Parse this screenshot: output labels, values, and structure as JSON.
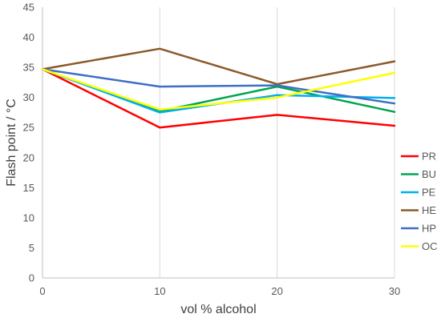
{
  "chart_data": {
    "type": "line",
    "title": "",
    "xlabel": "vol % alcohol",
    "ylabel": "Flash point / °C",
    "x": [
      0,
      10,
      20,
      30
    ],
    "xlim": [
      0,
      30
    ],
    "ylim": [
      0,
      45
    ],
    "xticks": [
      "0",
      "10",
      "20",
      "30"
    ],
    "yticks": [
      "0",
      "5",
      "10",
      "15",
      "20",
      "25",
      "30",
      "35",
      "40",
      "45"
    ],
    "grid": "vertical",
    "legend_position": "right",
    "series": [
      {
        "name": "PR",
        "color": "#ff0000",
        "values": [
          34.7,
          25.0,
          27.1,
          25.3
        ]
      },
      {
        "name": "BU",
        "color": "#00a651",
        "values": [
          34.7,
          27.7,
          31.8,
          27.6
        ]
      },
      {
        "name": "PE",
        "color": "#00b0f0",
        "values": [
          34.7,
          27.5,
          30.4,
          29.9
        ]
      },
      {
        "name": "HE",
        "color": "#8b5a2b",
        "values": [
          34.7,
          38.1,
          32.2,
          36.0
        ]
      },
      {
        "name": "HP",
        "color": "#3f6fc6",
        "values": [
          34.7,
          31.8,
          32.0,
          29.0
        ]
      },
      {
        "name": "OC",
        "color": "#ffff00",
        "values": [
          34.7,
          28.0,
          30.0,
          34.1
        ]
      }
    ]
  }
}
